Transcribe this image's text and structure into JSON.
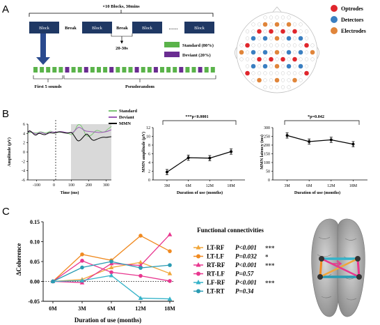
{
  "panel_labels": [
    "A",
    "B",
    "C"
  ],
  "panel_a": {
    "title": "×10 Blocks, 30mins",
    "block_label": "Block",
    "break_label": "Break",
    "ellipsis": "……",
    "break_duration": "20-30s",
    "first_label": "First 5 sounds",
    "pseudo_label": "Pseudorandom",
    "legend": [
      {
        "label": "Standard (80%)",
        "color": "#5ab34a"
      },
      {
        "label": "Deviant (20%)",
        "color": "#6a2c91"
      }
    ],
    "sound_sequence": "SSSSSDSSDSSSDSSSDSSDSSSDSSDSS",
    "head_legend": [
      {
        "label": "Optrodes",
        "color": "#e0262c"
      },
      {
        "label": "Detectors",
        "color": "#3a7fc1"
      },
      {
        "label": "Electrodes",
        "color": "#e0853a"
      }
    ],
    "block_color": "#1f3864",
    "arrow_color": "#2a4a8e"
  },
  "panel_b": {
    "erp": {
      "ylabel": "Amplitude (μV)",
      "xlabel": "Time (ms)",
      "yticks": [
        "6",
        "4",
        "2",
        "0",
        "-2",
        "-4",
        "-6"
      ],
      "xticks": [
        "-100",
        "0",
        "100",
        "200",
        "300"
      ],
      "legend": [
        {
          "label": "Standard",
          "color": "#7cc576"
        },
        {
          "label": "Deviant",
          "color": "#9b59b6"
        },
        {
          "label": "MMN",
          "color": "#000000"
        }
      ]
    },
    "mmn_amp": {
      "sig": "***p<0.0001",
      "ylabel": "MMN amplitude (μV)",
      "xlabel": "Duration of use (months)",
      "yticks": [
        "12",
        "10",
        "8",
        "6",
        "4",
        "2",
        "0"
      ],
      "categories": [
        "3M",
        "6M",
        "12M",
        "18M"
      ],
      "values": [
        1.8,
        5.1,
        5.0,
        6.5
      ]
    },
    "mmn_lat": {
      "sig": "*p=0.042",
      "ylabel": "MMN latency (ms)",
      "xlabel": "Duration of use (months)",
      "yticks": [
        "300",
        "250",
        "200",
        "150",
        "100",
        "50",
        "0"
      ],
      "categories": [
        "3M",
        "6M",
        "12M",
        "18M"
      ],
      "values": [
        255,
        220,
        230,
        205
      ]
    }
  },
  "chart_data": {
    "type": "line",
    "ylabel": "ΔCoherence",
    "xlabel": "Duration of use (months)",
    "categories": [
      "0M",
      "3M",
      "6M",
      "12M",
      "18M"
    ],
    "yticks": [
      "0.15",
      "0.10",
      "0.05",
      "0.00",
      "-0.05"
    ],
    "ylim": [
      -0.05,
      0.15
    ],
    "legend_title": "Functional connectivities",
    "series": [
      {
        "name": "LT-RF",
        "p": "P<0.001",
        "stars": "***",
        "color": "#f0a63a",
        "marker": "triangle",
        "values": [
          0.0,
          0.005,
          0.035,
          0.048,
          0.02
        ]
      },
      {
        "name": "LT-LF",
        "p": "P=0.032",
        "stars": "*",
        "color": "#f08a20",
        "marker": "circle",
        "values": [
          0.0,
          0.068,
          0.053,
          0.115,
          0.076
        ]
      },
      {
        "name": "RT-RF",
        "p": "P<0.001",
        "stars": "***",
        "color": "#e8368f",
        "marker": "triangle",
        "values": [
          0.0,
          -0.003,
          0.045,
          0.04,
          0.118
        ]
      },
      {
        "name": "RT-LF",
        "p": "P=0.57",
        "stars": "",
        "color": "#e8368f",
        "marker": "circle",
        "values": [
          0.0,
          0.052,
          0.023,
          0.014,
          0.001
        ]
      },
      {
        "name": "LF-RF",
        "p": "P<0.001",
        "stars": "***",
        "color": "#36b3c9",
        "marker": "triangle",
        "values": [
          0.0,
          0.002,
          0.015,
          -0.042,
          -0.044
        ]
      },
      {
        "name": "LT-RT",
        "p": "P=0.34",
        "stars": "",
        "color": "#2a9bb3",
        "marker": "circle",
        "values": [
          0.0,
          0.035,
          0.05,
          0.034,
          0.041
        ]
      }
    ]
  }
}
